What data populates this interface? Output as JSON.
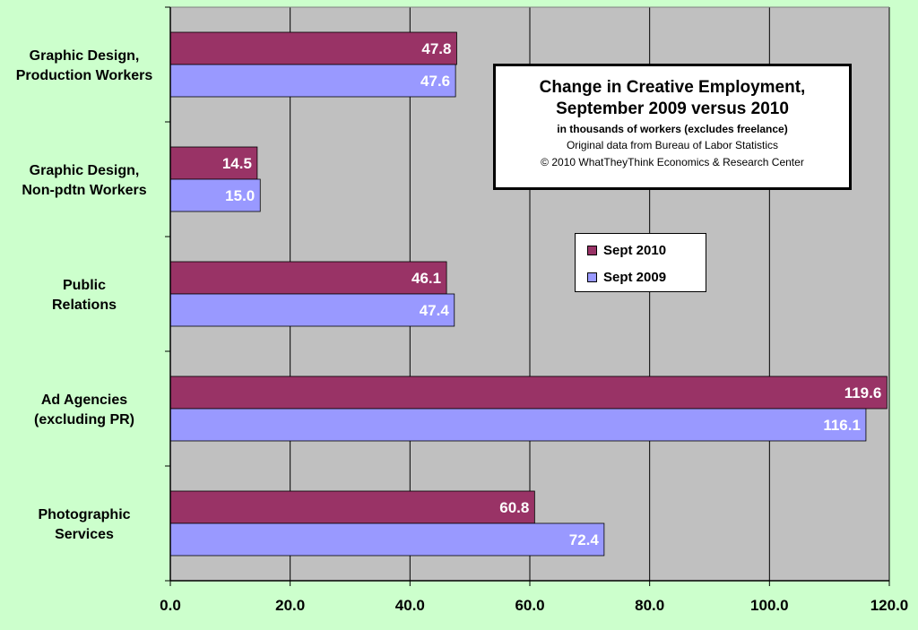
{
  "title": {
    "line1": "Change in Creative Employment,",
    "line2": "September 2009 versus 2010",
    "line3": "in thousands of workers (excludes freelance)",
    "line4": "Original data from Bureau of Labor Statistics",
    "line5": "© 2010 WhatTheyThink Economics & Research Center"
  },
  "colors": {
    "background": "#ccffcc",
    "plot_area": "#c0c0c0",
    "sept_2010": "#993366",
    "sept_2009": "#9999ff"
  },
  "chart_data": {
    "type": "bar",
    "orientation": "horizontal",
    "categories": [
      "Graphic Design, Production Workers",
      "Graphic Design, Non-pdtn Workers",
      "Public Relations",
      "Ad Agencies (excluding PR)",
      "Photographic Services"
    ],
    "category_label_lines": [
      [
        "Graphic Design,",
        "Production Workers"
      ],
      [
        "Graphic Design,",
        "Non-pdtn Workers"
      ],
      [
        "Public",
        "Relations"
      ],
      [
        "Ad Agencies",
        "(excluding PR)"
      ],
      [
        "Photographic",
        "Services"
      ]
    ],
    "series": [
      {
        "name": "Sept 2010",
        "values": [
          47.8,
          14.5,
          46.1,
          119.6,
          60.8
        ],
        "color": "#993366"
      },
      {
        "name": "Sept 2009",
        "values": [
          47.6,
          15.0,
          47.4,
          116.1,
          72.4
        ],
        "color": "#9999ff"
      }
    ],
    "xlim": [
      0,
      120
    ],
    "xticks": [
      "0.0",
      "20.0",
      "40.0",
      "60.0",
      "80.0",
      "100.0",
      "120.0"
    ],
    "grid": "vertical",
    "legend": "center-right",
    "data_labels": true
  }
}
